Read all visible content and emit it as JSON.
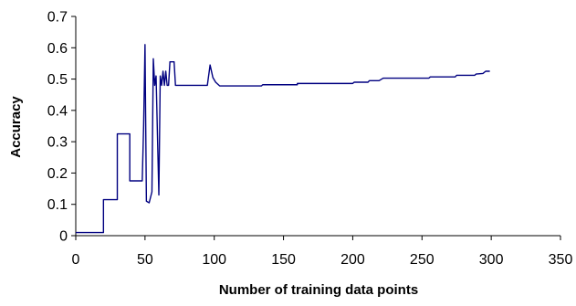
{
  "chart_data": {
    "type": "line",
    "title": "",
    "xlabel": "Number of training data points",
    "ylabel": "Accuracy",
    "xlim": [
      0,
      350
    ],
    "ylim": [
      0,
      0.7
    ],
    "x_ticks": [
      0,
      50,
      100,
      150,
      200,
      250,
      300,
      350
    ],
    "y_ticks": [
      0,
      0.1,
      0.2,
      0.3,
      0.4,
      0.5,
      0.6,
      0.7
    ],
    "x_tick_labels": [
      "0",
      "50",
      "100",
      "150",
      "200",
      "250",
      "300",
      "350"
    ],
    "y_tick_labels": [
      "0",
      "0.1",
      "0.2",
      "0.3",
      "0.4",
      "0.5",
      "0.6",
      "0.7"
    ],
    "grid": false,
    "legend": "none",
    "series": [
      {
        "color": "#000080",
        "points": [
          [
            0,
            0.01
          ],
          [
            20,
            0.01
          ],
          [
            20,
            0.115
          ],
          [
            30,
            0.115
          ],
          [
            30,
            0.325
          ],
          [
            39,
            0.325
          ],
          [
            39,
            0.175
          ],
          [
            48,
            0.175
          ],
          [
            49,
            0.35
          ],
          [
            50,
            0.61
          ],
          [
            51,
            0.11
          ],
          [
            53,
            0.105
          ],
          [
            55,
            0.14
          ],
          [
            56,
            0.565
          ],
          [
            57,
            0.48
          ],
          [
            58,
            0.51
          ],
          [
            59,
            0.32
          ],
          [
            60,
            0.13
          ],
          [
            61,
            0.51
          ],
          [
            62,
            0.48
          ],
          [
            63,
            0.525
          ],
          [
            64,
            0.48
          ],
          [
            65,
            0.525
          ],
          [
            66,
            0.48
          ],
          [
            67,
            0.48
          ],
          [
            68,
            0.555
          ],
          [
            71,
            0.555
          ],
          [
            72,
            0.48
          ],
          [
            95,
            0.48
          ],
          [
            97,
            0.545
          ],
          [
            99,
            0.505
          ],
          [
            101,
            0.49
          ],
          [
            104,
            0.478
          ],
          [
            134,
            0.478
          ],
          [
            135,
            0.482
          ],
          [
            160,
            0.482
          ],
          [
            160,
            0.486
          ],
          [
            200,
            0.486
          ],
          [
            201,
            0.49
          ],
          [
            211,
            0.49
          ],
          [
            212,
            0.495
          ],
          [
            219,
            0.495
          ],
          [
            222,
            0.503
          ],
          [
            255,
            0.503
          ],
          [
            256,
            0.507
          ],
          [
            274,
            0.507
          ],
          [
            275,
            0.512
          ],
          [
            288,
            0.512
          ],
          [
            289,
            0.516
          ],
          [
            294,
            0.518
          ],
          [
            296,
            0.525
          ],
          [
            299,
            0.525
          ]
        ]
      }
    ]
  }
}
